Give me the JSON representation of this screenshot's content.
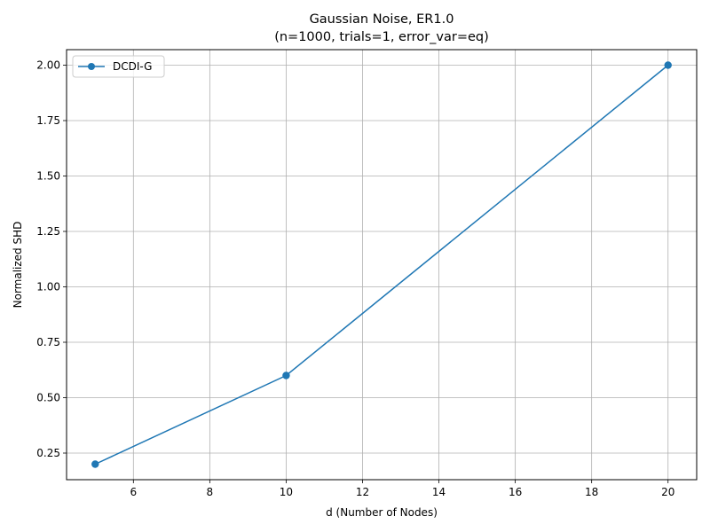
{
  "chart_data": {
    "type": "line",
    "title": "Gaussian Noise, ER1.0",
    "subtitle": "(n=1000, trials=1, error_var=eq)",
    "xlabel": "d (Number of Nodes)",
    "ylabel": "Normalized SHD",
    "xlim": [
      4.25,
      20.75
    ],
    "ylim": [
      0.13,
      2.07
    ],
    "xticks": [
      6,
      8,
      10,
      12,
      14,
      16,
      18,
      20
    ],
    "xtick_labels": [
      "6",
      "8",
      "10",
      "12",
      "14",
      "16",
      "18",
      "20"
    ],
    "yticks": [
      0.25,
      0.5,
      0.75,
      1.0,
      1.25,
      1.5,
      1.75,
      2.0
    ],
    "ytick_labels": [
      "0.25",
      "0.50",
      "0.75",
      "1.00",
      "1.25",
      "1.50",
      "1.75",
      "2.00"
    ],
    "grid": true,
    "legend_position": "upper-left",
    "series": [
      {
        "name": "DCDI-G",
        "color": "#1f77b4",
        "marker": "circle",
        "x": [
          5,
          10,
          20
        ],
        "y": [
          0.2,
          0.6,
          2.0
        ]
      }
    ]
  }
}
